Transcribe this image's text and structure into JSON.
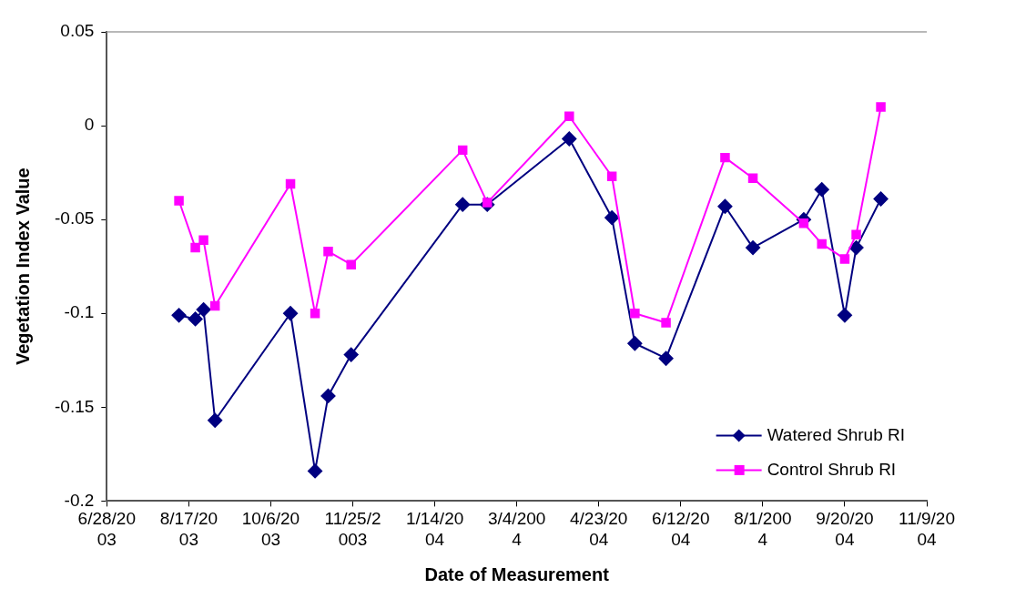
{
  "chart_data": {
    "type": "line",
    "xlabel": "Date of Measurement",
    "ylabel": "Vegetation Index Value",
    "x": [
      "2003-08-11",
      "2003-08-21",
      "2003-08-26",
      "2003-09-02",
      "2003-10-18",
      "2003-11-02",
      "2003-11-10",
      "2003-11-24",
      "2004-01-31",
      "2004-02-15",
      "2004-04-05",
      "2004-05-01",
      "2004-05-15",
      "2004-06-03",
      "2004-07-09",
      "2004-07-26",
      "2004-08-26",
      "2004-09-06",
      "2004-09-20",
      "2004-09-27",
      "2004-10-12"
    ],
    "series": [
      {
        "name": "Watered Shrub RI",
        "color": "#000080",
        "marker": "diamond",
        "values": [
          -0.101,
          -0.103,
          -0.098,
          -0.157,
          -0.1,
          -0.184,
          -0.144,
          -0.122,
          -0.042,
          -0.042,
          -0.007,
          -0.049,
          -0.116,
          -0.124,
          -0.043,
          -0.065,
          -0.05,
          -0.034,
          -0.101,
          -0.065,
          -0.039
        ]
      },
      {
        "name": "Control Shrub RI",
        "color": "#ff00ff",
        "marker": "square",
        "values": [
          -0.04,
          -0.065,
          -0.061,
          -0.096,
          -0.031,
          -0.1,
          -0.067,
          -0.074,
          -0.013,
          -0.041,
          0.005,
          -0.027,
          -0.1,
          -0.105,
          -0.017,
          -0.028,
          -0.052,
          -0.063,
          -0.071,
          -0.058,
          0.01
        ]
      }
    ],
    "xlim": [
      "2003-06-28",
      "2004-11-09"
    ],
    "xticks": [
      {
        "value": "2003-06-28",
        "label": "6/28/2003"
      },
      {
        "value": "2003-08-17",
        "label": "8/17/2003"
      },
      {
        "value": "2003-10-06",
        "label": "10/6/2003"
      },
      {
        "value": "2003-11-25",
        "label": "11/25/2003"
      },
      {
        "value": "2004-01-14",
        "label": "1/14/2004"
      },
      {
        "value": "2004-03-04",
        "label": "3/4/2004"
      },
      {
        "value": "2004-04-23",
        "label": "4/23/2004"
      },
      {
        "value": "2004-06-12",
        "label": "6/12/2004"
      },
      {
        "value": "2004-08-01",
        "label": "8/1/2004"
      },
      {
        "value": "2004-09-20",
        "label": "9/20/2004"
      },
      {
        "value": "2004-11-09",
        "label": "11/9/2004"
      }
    ],
    "ylim": [
      -0.2,
      0.05
    ],
    "yticks": [
      -0.2,
      -0.15,
      -0.1,
      -0.05,
      0,
      0.05
    ],
    "grid": false,
    "legend": "bottom right",
    "line_style": "solid"
  }
}
